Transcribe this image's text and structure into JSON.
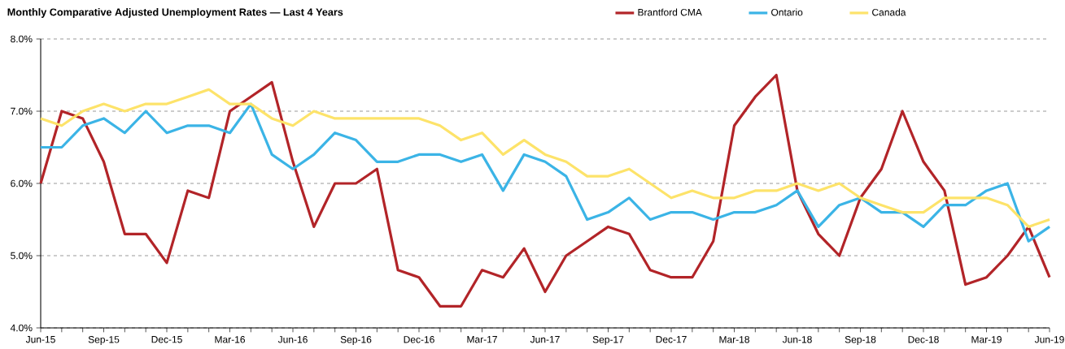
{
  "chart_data": {
    "type": "line",
    "title": "Monthly Comparative Adjusted Unemployment Rates — Last 4 Years",
    "categories": [
      "Jun-15",
      null,
      null,
      "Sep-15",
      null,
      null,
      "Dec-15",
      null,
      null,
      "Mar-16",
      null,
      null,
      "Jun-16",
      null,
      null,
      "Sep-16",
      null,
      null,
      "Dec-16",
      null,
      null,
      "Mar-17",
      null,
      null,
      "Jun-17",
      null,
      null,
      "Sep-17",
      null,
      null,
      "Dec-17",
      null,
      null,
      "Mar-18",
      null,
      null,
      "Jun-18",
      null,
      null,
      "Sep-18",
      null,
      null,
      "Dec-18",
      null,
      null,
      "Mar-19",
      null,
      null,
      "Jun-19"
    ],
    "series": [
      {
        "name": "Brantford CMA",
        "color": "#b22428",
        "values": [
          6.0,
          7.0,
          6.9,
          6.3,
          5.3,
          5.3,
          4.9,
          5.9,
          5.8,
          7.0,
          7.2,
          7.4,
          6.3,
          5.4,
          6.0,
          6.0,
          6.2,
          4.8,
          4.7,
          4.3,
          4.3,
          4.8,
          4.7,
          5.1,
          4.5,
          5.0,
          5.2,
          5.4,
          5.3,
          4.8,
          4.7,
          4.7,
          5.2,
          6.8,
          7.2,
          7.5,
          5.9,
          5.3,
          5.0,
          5.8,
          6.2,
          7.0,
          6.3,
          5.9,
          4.6,
          4.7,
          5.0,
          5.4,
          4.7
        ]
      },
      {
        "name": "Ontario",
        "color": "#3bb4e6",
        "values": [
          6.5,
          6.5,
          6.8,
          6.9,
          6.7,
          7.0,
          6.7,
          6.8,
          6.8,
          6.7,
          7.1,
          6.4,
          6.2,
          6.4,
          6.7,
          6.6,
          6.3,
          6.3,
          6.4,
          6.4,
          6.3,
          6.4,
          5.9,
          6.4,
          6.3,
          6.1,
          5.5,
          5.6,
          5.8,
          5.5,
          5.6,
          5.6,
          5.5,
          5.6,
          5.6,
          5.7,
          5.9,
          5.4,
          5.7,
          5.8,
          5.6,
          5.6,
          5.4,
          5.7,
          5.7,
          5.9,
          6.0,
          5.2,
          5.4
        ]
      },
      {
        "name": "Canada",
        "color": "#fde36a",
        "values": [
          6.9,
          6.8,
          7.0,
          7.1,
          7.0,
          7.1,
          7.1,
          7.2,
          7.3,
          7.1,
          7.1,
          6.9,
          6.8,
          7.0,
          6.9,
          6.9,
          6.9,
          6.9,
          6.9,
          6.8,
          6.6,
          6.7,
          6.4,
          6.6,
          6.4,
          6.3,
          6.1,
          6.1,
          6.2,
          6.0,
          5.8,
          5.9,
          5.8,
          5.8,
          5.9,
          5.9,
          6.0,
          5.9,
          6.0,
          5.8,
          5.7,
          5.6,
          5.6,
          5.8,
          5.8,
          5.8,
          5.7,
          5.4,
          5.5
        ]
      }
    ],
    "ylim": [
      4,
      8
    ],
    "yticks": [
      {
        "value": 4,
        "label": "4.0%"
      },
      {
        "value": 5,
        "label": "5.0%"
      },
      {
        "value": 6,
        "label": "6.0%"
      },
      {
        "value": 7,
        "label": "7.0%"
      },
      {
        "value": 8,
        "label": "8.0%"
      }
    ],
    "grid": "y",
    "legend": "top",
    "line_style": "solid"
  }
}
